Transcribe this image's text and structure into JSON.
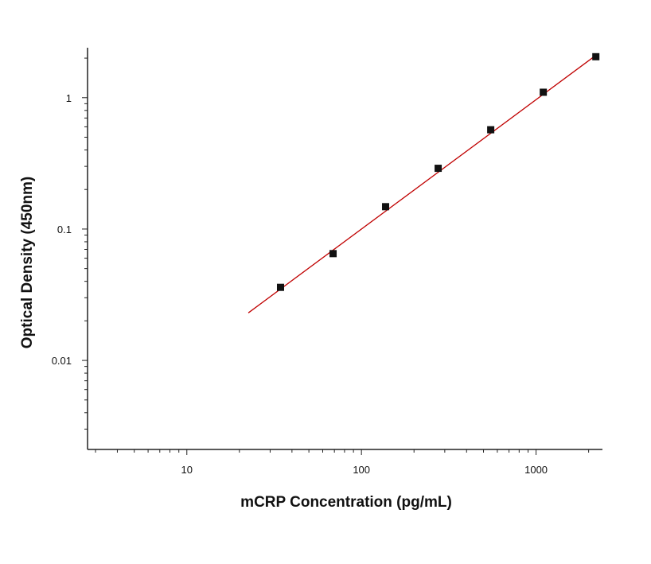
{
  "chart_data": {
    "type": "scatter",
    "title": "",
    "xlabel": "mCRP Concentration (pg/mL)",
    "ylabel": "Optical Density (450nm)",
    "x_scale": "log",
    "y_scale": "log",
    "xlim": [
      2.7,
      2400
    ],
    "ylim": [
      0.0021,
      2.4
    ],
    "x_ticks": [
      {
        "value": 10,
        "label": "10"
      },
      {
        "value": 100,
        "label": "100"
      },
      {
        "value": 1000,
        "label": "1000"
      }
    ],
    "y_ticks": [
      {
        "value": 0.01,
        "label": "0.01"
      },
      {
        "value": 0.1,
        "label": "0.1"
      },
      {
        "value": 1,
        "label": "1"
      }
    ],
    "grid": false,
    "legend": "none",
    "colors": {
      "points": "#111111",
      "fit_line": "#c00000",
      "axes": "#222222"
    },
    "series": [
      {
        "marker": "square",
        "x": [
          34.4,
          68.8,
          137.5,
          275,
          550,
          1100,
          2200
        ],
        "y": [
          0.036,
          0.065,
          0.148,
          0.29,
          0.57,
          1.1,
          2.05
        ]
      }
    ],
    "fit_line": {
      "x": [
        22.5,
        2200
      ],
      "y": [
        0.023,
        2.1
      ]
    }
  }
}
